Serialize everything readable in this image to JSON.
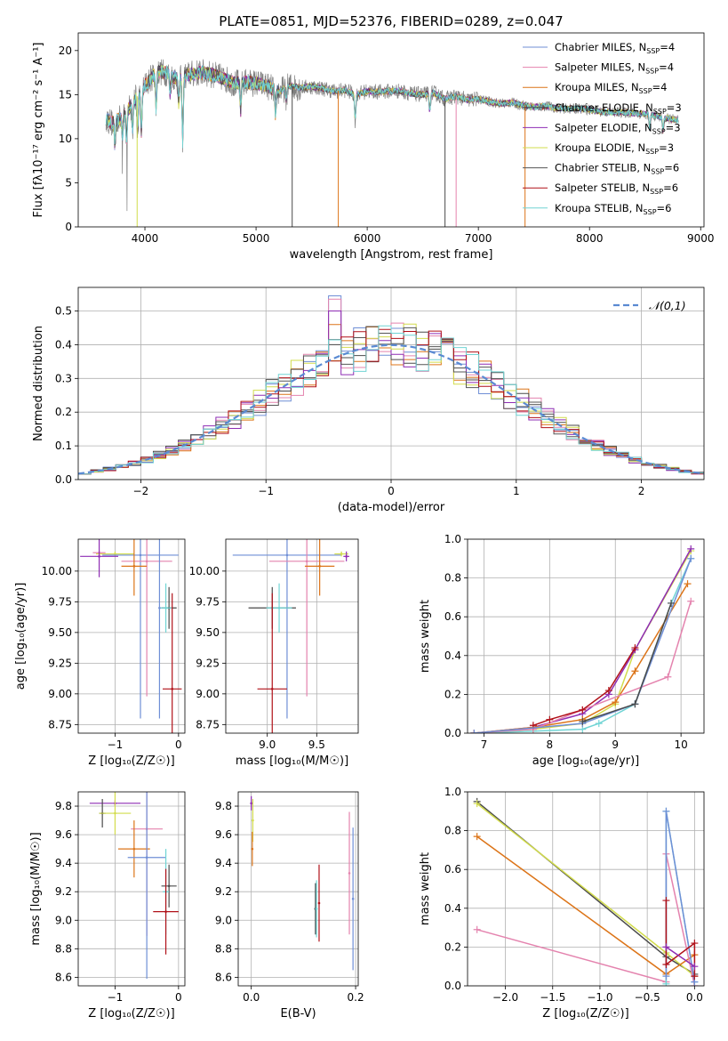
{
  "figure_title": "PLATE=0851, MJD=52376, FIBERID=0289, z=0.047",
  "colors": [
    "#6f8fd6",
    "#e483ae",
    "#dc7418",
    "#4a4a4a",
    "#8e2db4",
    "#d2dc4c",
    "#555555",
    "#b01018",
    "#70d4d4"
  ],
  "chart_data": [
    {
      "id": "spectrum",
      "type": "line",
      "xlabel": "wavelength [Angstrom, rest frame]",
      "ylabel": "Flux [f$_\\lambda$10$^{-17}$ erg cm$^{-2}$ s$^{-1}$ A$^{-1}$]",
      "ylabel_text": "Flux [fλ10⁻¹⁷ erg cm⁻² s⁻¹ A⁻¹]",
      "xlim": [
        3400,
        9030
      ],
      "ylim": [
        0,
        22
      ],
      "xticks": [
        4000,
        5000,
        6000,
        7000,
        8000,
        9000
      ],
      "xticklabels": [
        "4000",
        "5000",
        "6000",
        "7000",
        "8000",
        "9000"
      ],
      "yticks": [
        0,
        5,
        10,
        15,
        20
      ],
      "yticklabels": [
        "0",
        "5",
        "10",
        "15",
        "20"
      ],
      "observed_color": "#808080",
      "legend_loc": "upper right",
      "legend": [
        {
          "label": "Chabrier MILES, N_SSP=4",
          "base": "Chabrier MILES, N",
          "sub": "SSP",
          "tail": "=4"
        },
        {
          "label": "Salpeter MILES, N_SSP=4",
          "base": "Salpeter MILES, N",
          "sub": "SSP",
          "tail": "=4"
        },
        {
          "label": "Kroupa MILES, N_SSP=4",
          "base": "Kroupa MILES, N",
          "sub": "SSP",
          "tail": "=4"
        },
        {
          "label": "Chabrier ELODIE, N_SSP=3",
          "base": "Chabrier ELODIE, N",
          "sub": "SSP",
          "tail": "=3"
        },
        {
          "label": "Salpeter ELODIE, N_SSP=3",
          "base": "Salpeter ELODIE, N",
          "sub": "SSP",
          "tail": "=3"
        },
        {
          "label": "Kroupa ELODIE, N_SSP=3",
          "base": "Kroupa ELODIE, N",
          "sub": "SSP",
          "tail": "=3"
        },
        {
          "label": "Chabrier STELIB, N_SSP=6",
          "base": "Chabrier STELIB, N",
          "sub": "SSP",
          "tail": "=6"
        },
        {
          "label": "Salpeter STELIB, N_SSP=6",
          "base": "Salpeter STELIB, N",
          "sub": "SSP",
          "tail": "=6"
        },
        {
          "label": "Kroupa STELIB, N_SSP=6",
          "base": "Kroupa STELIB, N",
          "sub": "SSP",
          "tail": "=6"
        }
      ],
      "continuum": [
        [
          3650,
          12.3
        ],
        [
          3700,
          11.8
        ],
        [
          3800,
          12.4
        ],
        [
          3900,
          14.3
        ],
        [
          4000,
          16.0
        ],
        [
          4100,
          17.6
        ],
        [
          4200,
          17.5
        ],
        [
          4300,
          16.7
        ],
        [
          4400,
          17.3
        ],
        [
          4500,
          17.5
        ],
        [
          4600,
          17.3
        ],
        [
          4700,
          16.9
        ],
        [
          4800,
          16.3
        ],
        [
          4900,
          16.4
        ],
        [
          5000,
          16.3
        ],
        [
          5100,
          16.0
        ],
        [
          5200,
          15.3
        ],
        [
          5300,
          16.0
        ],
        [
          5400,
          15.8
        ],
        [
          5500,
          15.9
        ],
        [
          5600,
          15.7
        ],
        [
          5700,
          15.4
        ],
        [
          5800,
          15.5
        ],
        [
          5900,
          15.0
        ],
        [
          6000,
          15.4
        ],
        [
          6100,
          15.3
        ],
        [
          6200,
          15.4
        ],
        [
          6300,
          15.4
        ],
        [
          6400,
          15.1
        ],
        [
          6500,
          15.0
        ],
        [
          6600,
          15.2
        ],
        [
          6700,
          14.5
        ],
        [
          6800,
          14.8
        ],
        [
          6900,
          14.4
        ],
        [
          7000,
          14.5
        ],
        [
          7100,
          14.2
        ],
        [
          7200,
          14.0
        ],
        [
          7300,
          14.1
        ],
        [
          7400,
          13.8
        ],
        [
          7500,
          13.6
        ],
        [
          7600,
          13.7
        ],
        [
          7700,
          13.5
        ],
        [
          7800,
          13.4
        ],
        [
          7900,
          13.4
        ],
        [
          8000,
          13.3
        ],
        [
          8100,
          13.1
        ],
        [
          8200,
          13.0
        ],
        [
          8300,
          13.0
        ],
        [
          8400,
          12.9
        ],
        [
          8500,
          12.8
        ],
        [
          8600,
          12.6
        ],
        [
          8700,
          12.3
        ],
        [
          8800,
          12.1
        ]
      ],
      "absorption_lines": [
        [
          3730,
          2.5
        ],
        [
          3798,
          2.0
        ],
        [
          3835,
          3.0
        ],
        [
          3889,
          3.0
        ],
        [
          3934,
          4.2
        ],
        [
          3968,
          4.5
        ],
        [
          4101,
          4.0
        ],
        [
          4227,
          2.0
        ],
        [
          4304,
          2.5
        ],
        [
          4340,
          7.0
        ],
        [
          4861,
          3.0
        ],
        [
          5175,
          2.5
        ],
        [
          5270,
          1.5
        ],
        [
          5892,
          3.0
        ],
        [
          6563,
          2.0
        ],
        [
          8542,
          1.5
        ],
        [
          8662,
          1.5
        ]
      ],
      "model_spikes": [
        [
          3930,
          0
        ],
        [
          5325,
          0
        ],
        [
          5740,
          0
        ],
        [
          6700,
          0
        ],
        [
          6800,
          0
        ],
        [
          7420,
          0
        ]
      ]
    },
    {
      "id": "residuals",
      "type": "histogram",
      "xlabel": "(data-model)/error",
      "ylabel": "Normed distribution",
      "xlim": [
        -2.5,
        2.5
      ],
      "ylim": [
        0,
        0.57
      ],
      "xticks": [
        -2,
        -1,
        0,
        1,
        2
      ],
      "xticklabels": [
        "−2",
        "−1",
        "0",
        "1",
        "2"
      ],
      "yticks": [
        0,
        0.1,
        0.2,
        0.3,
        0.4,
        0.5
      ],
      "yticklabels": [
        "0.0",
        "0.1",
        "0.2",
        "0.3",
        "0.4",
        "0.5"
      ],
      "grid": true,
      "bin_width": 0.1,
      "bin_start": -2.5,
      "reference_label": "𝒩(0,1)",
      "reference_color": "#5a8ad2",
      "spike_bin": -0.5,
      "spike_values": [
        0.545,
        0.535,
        0.46,
        0.4,
        0.5
      ]
    },
    {
      "id": "age_vs_Z",
      "type": "errorbar",
      "xlabel": "Z [log₁₀(Z/Z☉)]",
      "ylabel": "age  [log₁₀(age/yr)]",
      "xlim": [
        -1.58,
        0.1
      ],
      "ylim": [
        8.68,
        10.26
      ],
      "xticks": [
        -1,
        0
      ],
      "xticklabels": [
        "−1",
        "0"
      ],
      "yticks": [
        8.75,
        9.0,
        9.25,
        9.5,
        9.75,
        10.0
      ],
      "yticklabels": [
        "8.75",
        "9.00",
        "9.25",
        "9.50",
        "9.75",
        "10.00"
      ],
      "grid": true,
      "points": [
        {
          "c": 1,
          "x": -1.25,
          "xe": 0.1,
          "y": 10.15,
          "ye": 0.02
        },
        {
          "c": 5,
          "x": -1.0,
          "xe": 0.3,
          "y": 10.14,
          "ye": 0.02
        },
        {
          "c": 4,
          "x": -1.25,
          "xe": 0.3,
          "y": 10.12,
          "ye": 0.17
        },
        {
          "c": 0,
          "x": -0.6,
          "xe": 0.6,
          "y": 10.13,
          "ye": 1.33
        },
        {
          "c": 1,
          "x": -0.5,
          "xe": 0.4,
          "y": 10.08,
          "ye": 1.1
        },
        {
          "c": 2,
          "x": -0.7,
          "xe": 0.2,
          "y": 10.04,
          "ye": 0.24
        },
        {
          "c": 3,
          "x": -0.15,
          "xe": 0.12,
          "y": 9.7,
          "ye": 0.17
        },
        {
          "c": 8,
          "x": -0.2,
          "xe": 0.1,
          "y": 9.7,
          "ye": 0.2
        },
        {
          "c": 0,
          "x": -0.3,
          "xe": 0.01,
          "y": 9.7,
          "ye": 0.9
        },
        {
          "c": 7,
          "x": -0.1,
          "xe": 0.15,
          "y": 9.04,
          "ye": 0.78
        }
      ]
    },
    {
      "id": "age_vs_mass",
      "type": "errorbar",
      "xlabel": "mass [log₁₀(M/M☉)]",
      "ylabel": "",
      "xlim": [
        8.58,
        9.92
      ],
      "ylim": [
        8.68,
        10.26
      ],
      "xticks": [
        9.0,
        9.5
      ],
      "xticklabels": [
        "9.0",
        "9.5"
      ],
      "yticks": [
        8.75,
        9.0,
        9.25,
        9.5,
        9.75,
        10.0
      ],
      "yticklabels": [
        "8.75",
        "9.00",
        "9.25",
        "9.50",
        "9.75",
        "10.00"
      ],
      "grid": true,
      "points": [
        {
          "c": 0,
          "x": 9.2,
          "xe": 0.55,
          "y": 10.13,
          "ye": 1.33
        },
        {
          "c": 1,
          "x": 9.4,
          "xe": 0.38,
          "y": 10.08,
          "ye": 1.1
        },
        {
          "c": 2,
          "x": 9.53,
          "xe": 0.15,
          "y": 10.04,
          "ye": 0.24
        },
        {
          "c": 5,
          "x": 9.75,
          "xe": 0.07,
          "y": 10.14,
          "ye": 0.02
        },
        {
          "c": 4,
          "x": 9.8,
          "xe": 0.03,
          "y": 10.12,
          "ye": 0.04
        },
        {
          "c": 3,
          "x": 9.05,
          "xe": 0.24,
          "y": 9.7,
          "ye": 0.17
        },
        {
          "c": 8,
          "x": 9.12,
          "xe": 0.13,
          "y": 9.7,
          "ye": 0.2
        },
        {
          "c": 7,
          "x": 9.05,
          "xe": 0.15,
          "y": 9.04,
          "ye": 0.78
        }
      ]
    },
    {
      "id": "mass_weight_vs_age",
      "type": "line",
      "xlabel": "age  [log₁₀(age/yr)]",
      "ylabel": "mass weight",
      "xlim": [
        6.75,
        10.35
      ],
      "ylim": [
        0,
        1.0
      ],
      "xticks": [
        7,
        8,
        9,
        10
      ],
      "xticklabels": [
        "7",
        "8",
        "9",
        "10"
      ],
      "yticks": [
        0,
        0.2,
        0.4,
        0.6,
        0.8,
        1.0
      ],
      "yticklabels": [
        "0.0",
        "0.2",
        "0.4",
        "0.6",
        "0.8",
        "1.0"
      ],
      "grid": true,
      "series": [
        {
          "c": 8,
          "x": [
            6.85,
            7.75,
            8.5,
            8.75,
            9.3,
            9.85,
            10.15
          ],
          "y": [
            0.0,
            0.01,
            0.02,
            0.05,
            0.15,
            0.67,
            0.9
          ]
        },
        {
          "c": 5,
          "x": [
            6.85,
            7.75,
            8.5,
            9.0,
            9.3,
            10.15
          ],
          "y": [
            0.0,
            0.02,
            0.05,
            0.15,
            0.43,
            0.94
          ]
        },
        {
          "c": 4,
          "x": [
            6.85,
            7.75,
            8.5,
            8.9,
            9.3,
            10.15
          ],
          "y": [
            0.0,
            0.03,
            0.1,
            0.2,
            0.43,
            0.95
          ]
        },
        {
          "c": 2,
          "x": [
            6.85,
            7.75,
            8.5,
            9.0,
            9.3,
            10.1
          ],
          "y": [
            0.0,
            0.03,
            0.07,
            0.16,
            0.32,
            0.77
          ]
        },
        {
          "c": 1,
          "x": [
            6.85,
            7.75,
            8.5,
            9.8,
            10.15
          ],
          "y": [
            0.0,
            0.02,
            0.12,
            0.29,
            0.68
          ]
        },
        {
          "c": 7,
          "x": [
            7.75,
            8.0,
            8.5,
            8.9,
            9.3
          ],
          "y": [
            0.04,
            0.07,
            0.12,
            0.22,
            0.44
          ]
        },
        {
          "c": 0,
          "x": [
            6.85,
            8.5,
            9.3,
            10.15
          ],
          "y": [
            0.0,
            0.05,
            0.15,
            0.9
          ]
        },
        {
          "c": 3,
          "x": [
            8.5,
            9.3,
            9.85
          ],
          "y": [
            0.06,
            0.15,
            0.67
          ]
        }
      ]
    },
    {
      "id": "mass_vs_Z",
      "type": "errorbar",
      "xlabel": "Z [log₁₀(Z/Z☉)]",
      "ylabel": "mass [log₁₀(M/M☉)]",
      "xlim": [
        -1.58,
        0.1
      ],
      "ylim": [
        8.54,
        9.9
      ],
      "xticks": [
        -1,
        0
      ],
      "xticklabels": [
        "−1",
        "0"
      ],
      "yticks": [
        8.6,
        8.8,
        9.0,
        9.2,
        9.4,
        9.6,
        9.8
      ],
      "yticklabels": [
        "8.6",
        "8.8",
        "9.0",
        "9.2",
        "9.4",
        "9.6",
        "9.8"
      ],
      "grid": true,
      "points": [
        {
          "c": 4,
          "x": -1.0,
          "xe": 0.4,
          "y": 9.82,
          "ye": 0.02
        },
        {
          "c": 3,
          "x": -1.2,
          "xe": 0.05,
          "y": 9.75,
          "ye": 0.1
        },
        {
          "c": 5,
          "x": -1.0,
          "xe": 0.25,
          "y": 9.75,
          "ye": 0.15
        },
        {
          "c": 1,
          "x": -0.5,
          "xe": 0.25,
          "y": 9.64,
          "ye": 0.75
        },
        {
          "c": 2,
          "x": -0.7,
          "xe": 0.25,
          "y": 9.5,
          "ye": 0.2
        },
        {
          "c": 0,
          "x": -0.5,
          "xe": 0.3,
          "y": 9.44,
          "ye": 0.85
        },
        {
          "c": 3,
          "x": -0.15,
          "xe": 0.12,
          "y": 9.24,
          "ye": 0.15
        },
        {
          "c": 8,
          "x": -0.2,
          "xe": 0.05,
          "y": 9.2,
          "ye": 0.3
        },
        {
          "c": 7,
          "x": -0.2,
          "xe": 0.2,
          "y": 9.06,
          "ye": 0.3
        }
      ]
    },
    {
      "id": "mass_vs_EBV",
      "type": "errorbar",
      "xlabel": "E(B-V)",
      "ylabel": "",
      "xlim": [
        -0.025,
        0.205
      ],
      "ylim": [
        8.54,
        9.9
      ],
      "xticks": [
        0,
        0.2
      ],
      "xticklabels": [
        "0.0",
        "0.2"
      ],
      "yticks": [
        8.6,
        8.8,
        9.0,
        9.2,
        9.4,
        9.6,
        9.8
      ],
      "yticklabels": [
        "8.6",
        "8.8",
        "9.0",
        "9.2",
        "9.4",
        "9.6",
        "9.8"
      ],
      "grid": true,
      "points": [
        {
          "c": 4,
          "x": 0.0,
          "xe": 0.0,
          "y": 9.82,
          "ye": 0.05
        },
        {
          "c": 5,
          "x": 0.003,
          "xe": 0.0,
          "y": 9.7,
          "ye": 0.15
        },
        {
          "c": 2,
          "x": 0.002,
          "xe": 0.0,
          "y": 9.5,
          "ye": 0.12
        },
        {
          "c": 3,
          "x": 0.123,
          "xe": 0.0,
          "y": 9.08,
          "ye": 0.18
        },
        {
          "c": 8,
          "x": 0.125,
          "xe": 0.0,
          "y": 9.08,
          "ye": 0.2
        },
        {
          "c": 7,
          "x": 0.13,
          "xe": 0.0,
          "y": 9.12,
          "ye": 0.27
        },
        {
          "c": 1,
          "x": 0.188,
          "xe": 0.0,
          "y": 9.33,
          "ye": 0.43
        },
        {
          "c": 0,
          "x": 0.195,
          "xe": 0.0,
          "y": 9.15,
          "ye": 0.5
        }
      ]
    },
    {
      "id": "mass_weight_vs_Z",
      "type": "line",
      "xlabel": "Z [log₁₀(Z/Z☉)]",
      "ylabel": "mass weight",
      "xlim": [
        -2.4,
        0.1
      ],
      "ylim": [
        0,
        1.0
      ],
      "xticks": [
        -2.0,
        -1.5,
        -1.0,
        -0.5,
        0.0
      ],
      "xticklabels": [
        "−2.0",
        "−1.5",
        "−1.0",
        "−0.5",
        "0.0"
      ],
      "yticks": [
        0,
        0.2,
        0.4,
        0.6,
        0.8,
        1.0
      ],
      "yticklabels": [
        "0.0",
        "0.2",
        "0.4",
        "0.6",
        "0.8",
        "1.0"
      ],
      "grid": true,
      "series": [
        {
          "c": 3,
          "x": [
            -2.3,
            -0.3,
            0.0
          ],
          "y": [
            0.95,
            0.15,
            0.06
          ]
        },
        {
          "c": 5,
          "x": [
            -2.3,
            -0.3,
            0.0
          ],
          "y": [
            0.94,
            0.17,
            0.05
          ]
        },
        {
          "c": 2,
          "x": [
            -2.3,
            -0.3,
            0.0
          ],
          "y": [
            0.77,
            0.06,
            0.16
          ]
        },
        {
          "c": 1,
          "x": [
            -2.3,
            -0.3,
            -0.3,
            0.0
          ],
          "y": [
            0.29,
            0.02,
            0.68,
            0.0
          ]
        },
        {
          "c": 8,
          "x": [
            -0.3,
            -0.3,
            0.0
          ],
          "y": [
            0.01,
            0.9,
            0.02
          ]
        },
        {
          "c": 0,
          "x": [
            -0.3,
            -0.3,
            0.0
          ],
          "y": [
            0.05,
            0.9,
            0.02
          ]
        },
        {
          "c": 7,
          "x": [
            -0.3,
            -0.3,
            0.0,
            0.0
          ],
          "y": [
            0.44,
            0.11,
            0.22,
            0.05
          ]
        },
        {
          "c": 4,
          "x": [
            -0.3,
            0.0
          ],
          "y": [
            0.2,
            0.1
          ]
        }
      ]
    }
  ]
}
